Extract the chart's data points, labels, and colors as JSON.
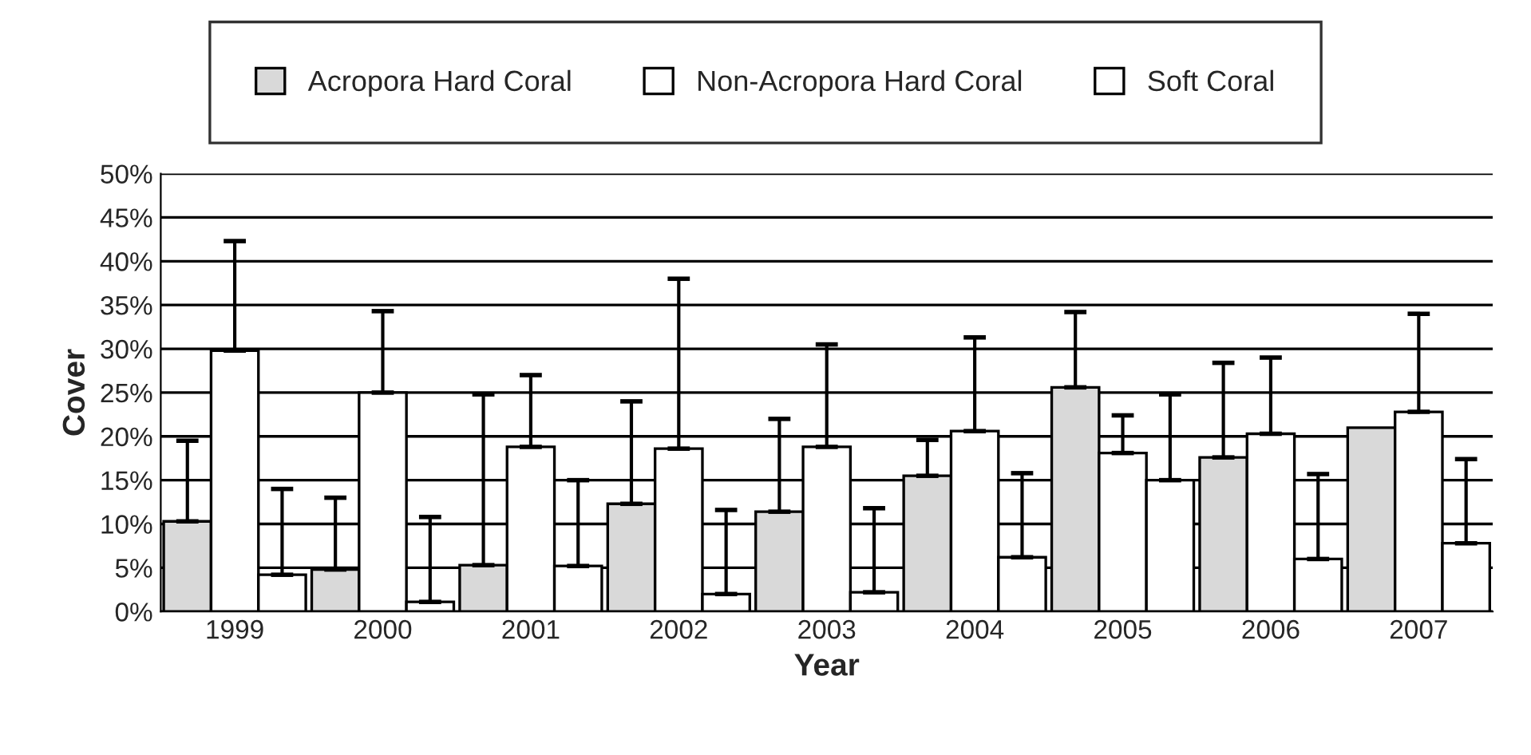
{
  "chart_data": {
    "type": "bar",
    "xlabel": "Year",
    "ylabel": "Cover",
    "categories": [
      "1999",
      "2000",
      "2001",
      "2002",
      "2003",
      "2004",
      "2005",
      "2006",
      "2007"
    ],
    "series": [
      {
        "name": "Acropora Hard Coral",
        "color": "#d9d9d9",
        "values": [
          10.3,
          4.8,
          5.3,
          12.3,
          11.4,
          15.5,
          25.6,
          17.6,
          21.0
        ],
        "errors": [
          [
            10.3,
            19.5
          ],
          [
            4.8,
            13.0
          ],
          [
            5.3,
            24.8
          ],
          [
            12.3,
            24.0
          ],
          [
            11.4,
            22.0
          ],
          [
            15.5,
            19.6
          ],
          [
            25.6,
            34.2
          ],
          [
            17.6,
            28.4
          ],
          null
        ]
      },
      {
        "name": "Non-Acropora Hard Coral",
        "color": "#ffffff",
        "values": [
          29.8,
          25.0,
          18.8,
          18.6,
          18.8,
          20.6,
          18.1,
          20.3,
          22.8
        ],
        "errors": [
          [
            29.8,
            42.3
          ],
          [
            25.0,
            34.3
          ],
          [
            18.8,
            27.0
          ],
          [
            18.6,
            38.0
          ],
          [
            18.8,
            30.5
          ],
          [
            20.6,
            31.3
          ],
          [
            18.1,
            22.4
          ],
          [
            20.3,
            29.0
          ],
          [
            22.8,
            34.0
          ]
        ]
      },
      {
        "name": "Soft Coral",
        "color": "#ffffff",
        "values": [
          4.2,
          1.1,
          5.2,
          2.0,
          2.2,
          6.2,
          15.0,
          6.0,
          7.8
        ],
        "errors": [
          [
            4.2,
            14.0
          ],
          [
            1.1,
            10.8
          ],
          [
            5.2,
            15.0
          ],
          [
            2.0,
            11.6
          ],
          [
            2.2,
            11.8
          ],
          [
            6.2,
            15.8
          ],
          [
            15.0,
            24.8
          ],
          [
            6.0,
            15.7
          ],
          [
            7.8,
            17.4
          ]
        ]
      }
    ],
    "ylim": [
      0,
      50
    ],
    "yticks": [
      {
        "value": 0,
        "label": "0%"
      },
      {
        "value": 5,
        "label": "5%"
      },
      {
        "value": 10,
        "label": "10%"
      },
      {
        "value": 15,
        "label": "15%"
      },
      {
        "value": 20,
        "label": "20%"
      },
      {
        "value": 25,
        "label": "25%"
      },
      {
        "value": 30,
        "label": "30%"
      },
      {
        "value": 35,
        "label": "35%"
      },
      {
        "value": 40,
        "label": "40%"
      },
      {
        "value": 45,
        "label": "45%"
      },
      {
        "value": 50,
        "label": "50%"
      }
    ],
    "grid": "y",
    "legend": "top"
  }
}
